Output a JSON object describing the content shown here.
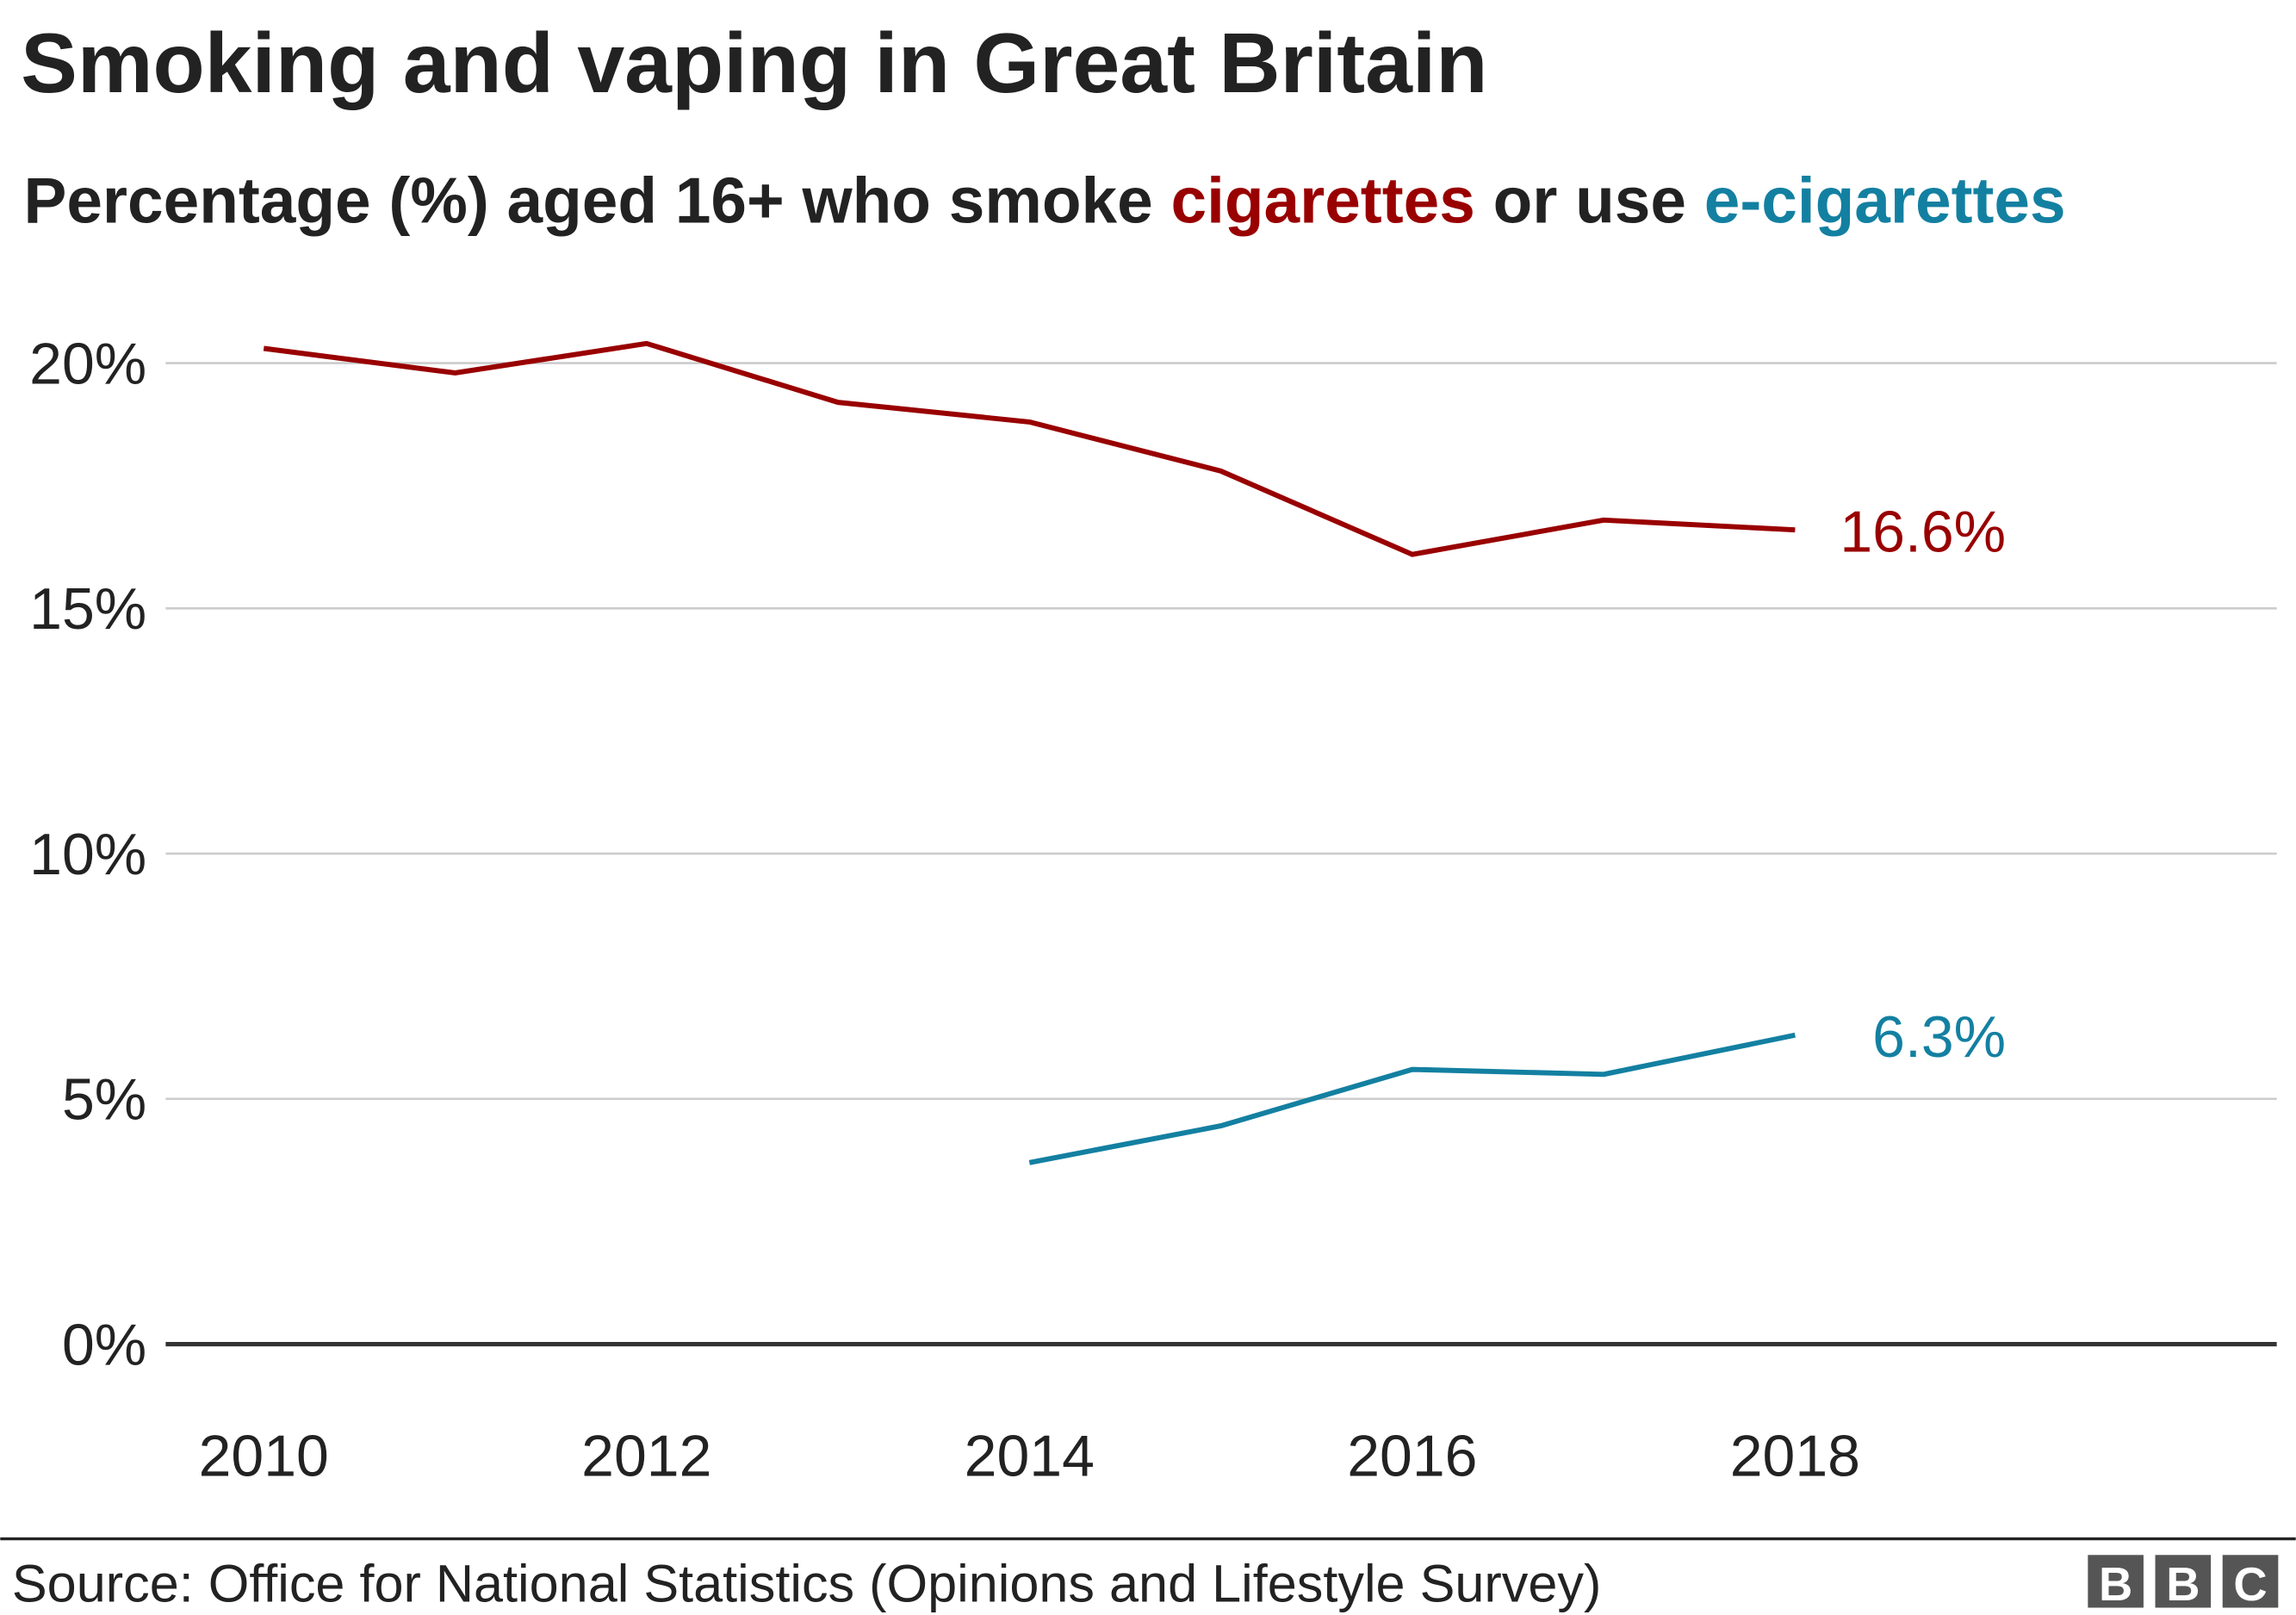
{
  "chart_data": {
    "type": "line",
    "title": "Smoking and vaping in Great Britain",
    "subtitle": {
      "prefix": "Percentage (%) aged 16+ who smoke ",
      "series1_word": "cigarettes",
      "middle": " or use ",
      "series2_word": "e-cigarettes"
    },
    "x_ticks": [
      "2010",
      "2012",
      "2014",
      "2016",
      "2018"
    ],
    "y_ticks": [
      "0%",
      "5%",
      "10%",
      "15%",
      "20%"
    ],
    "xlim": [
      2010,
      2019.8
    ],
    "ylim": [
      0,
      20
    ],
    "grid": true,
    "series": [
      {
        "name": "cigarettes",
        "color": "#990000",
        "x": [
          2010,
          2011,
          2012,
          2013,
          2014,
          2015,
          2016,
          2017,
          2018
        ],
        "y": [
          20.3,
          19.8,
          20.4,
          19.2,
          18.8,
          17.8,
          16.1,
          16.8,
          16.6
        ],
        "end_label": "16.6%"
      },
      {
        "name": "e-cigarettes",
        "color": "#1380A1",
        "x": [
          2014,
          2015,
          2016,
          2017,
          2018
        ],
        "y": [
          3.7,
          4.45,
          5.6,
          5.5,
          6.3
        ],
        "end_label": "6.3%"
      }
    ]
  },
  "footer": {
    "source": "Source: Office for National Statistics (Opinions and Lifestyle Survey)",
    "logo": "BBC"
  }
}
